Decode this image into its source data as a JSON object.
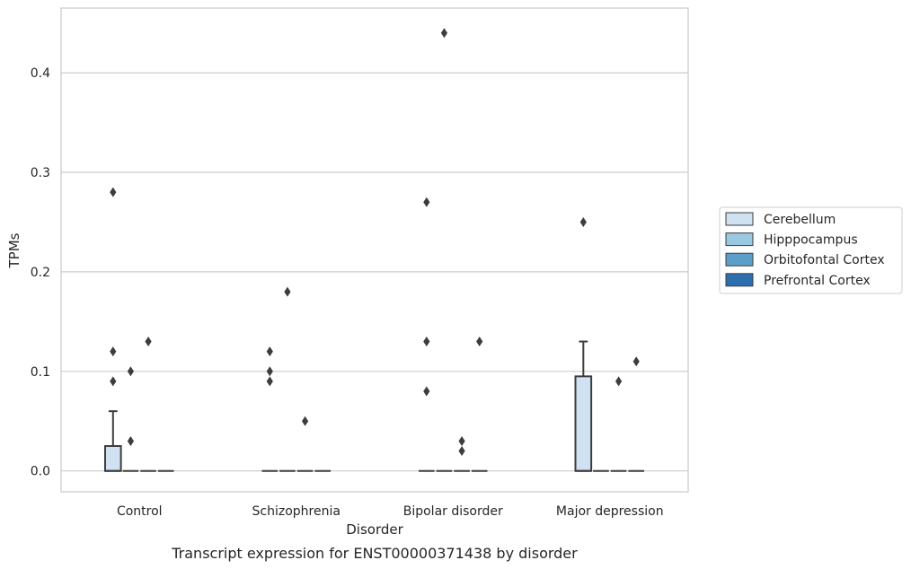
{
  "chart_data": {
    "type": "box",
    "title": "Transcript expression for ENST00000371438 by disorder",
    "xlabel": "Disorder",
    "ylabel": "TPMs",
    "ylim": [
      -0.021,
      0.465
    ],
    "yticks": [
      0.0,
      0.1,
      0.2,
      0.3,
      0.4
    ],
    "ytick_labels": [
      "0.0",
      "0.1",
      "0.2",
      "0.3",
      "0.4"
    ],
    "grid": true,
    "legend_position": "right",
    "categories": [
      "Control",
      "Schizophrenia",
      "Bipolar disorder",
      "Major depression"
    ],
    "series": [
      {
        "name": "Cerebellum",
        "color": "#d0e1f1",
        "boxes": [
          {
            "q1": 0.0,
            "median": 0.0,
            "q3": 0.025,
            "whisker_low": 0.0,
            "whisker_high": 0.06,
            "outliers": [
              0.09,
              0.12,
              0.28
            ]
          },
          {
            "q1": 0.0,
            "median": 0.0,
            "q3": 0.0,
            "whisker_low": 0.0,
            "whisker_high": 0.0,
            "outliers": [
              0.09,
              0.1,
              0.12
            ]
          },
          {
            "q1": 0.0,
            "median": 0.0,
            "q3": 0.0,
            "whisker_low": 0.0,
            "whisker_high": 0.0,
            "outliers": [
              0.08,
              0.13,
              0.27
            ]
          },
          {
            "q1": 0.0,
            "median": 0.0,
            "q3": 0.095,
            "whisker_low": 0.0,
            "whisker_high": 0.13,
            "outliers": [
              0.25
            ]
          }
        ]
      },
      {
        "name": "Hipppocampus",
        "color": "#9ac8e0",
        "boxes": [
          {
            "q1": 0.0,
            "median": 0.0,
            "q3": 0.0,
            "whisker_low": 0.0,
            "whisker_high": 0.0,
            "outliers": [
              0.03,
              0.1
            ]
          },
          {
            "q1": 0.0,
            "median": 0.0,
            "q3": 0.0,
            "whisker_low": 0.0,
            "whisker_high": 0.0,
            "outliers": [
              0.18
            ]
          },
          {
            "q1": 0.0,
            "median": 0.0,
            "q3": 0.0,
            "whisker_low": 0.0,
            "whisker_high": 0.0,
            "outliers": [
              0.44
            ]
          },
          {
            "q1": 0.0,
            "median": 0.0,
            "q3": 0.0,
            "whisker_low": 0.0,
            "whisker_high": 0.0,
            "outliers": []
          }
        ]
      },
      {
        "name": "Orbitofontal Cortex",
        "color": "#5a9ec9",
        "boxes": [
          {
            "q1": 0.0,
            "median": 0.0,
            "q3": 0.0,
            "whisker_low": 0.0,
            "whisker_high": 0.0,
            "outliers": [
              0.13
            ]
          },
          {
            "q1": 0.0,
            "median": 0.0,
            "q3": 0.0,
            "whisker_low": 0.0,
            "whisker_high": 0.0,
            "outliers": [
              0.05
            ]
          },
          {
            "q1": 0.0,
            "median": 0.0,
            "q3": 0.0,
            "whisker_low": 0.0,
            "whisker_high": 0.0,
            "outliers": [
              0.02,
              0.03
            ]
          },
          {
            "q1": 0.0,
            "median": 0.0,
            "q3": 0.0,
            "whisker_low": 0.0,
            "whisker_high": 0.0,
            "outliers": [
              0.09
            ]
          }
        ]
      },
      {
        "name": "Prefrontal Cortex",
        "color": "#2d6fae",
        "boxes": [
          {
            "q1": 0.0,
            "median": 0.0,
            "q3": 0.0,
            "whisker_low": 0.0,
            "whisker_high": 0.0,
            "outliers": []
          },
          {
            "q1": 0.0,
            "median": 0.0,
            "q3": 0.0,
            "whisker_low": 0.0,
            "whisker_high": 0.0,
            "outliers": []
          },
          {
            "q1": 0.0,
            "median": 0.0,
            "q3": 0.0,
            "whisker_low": 0.0,
            "whisker_high": 0.0,
            "outliers": [
              0.13
            ]
          },
          {
            "q1": 0.0,
            "median": 0.0,
            "q3": 0.0,
            "whisker_low": 0.0,
            "whisker_high": 0.0,
            "outliers": [
              0.11
            ]
          }
        ]
      }
    ]
  }
}
